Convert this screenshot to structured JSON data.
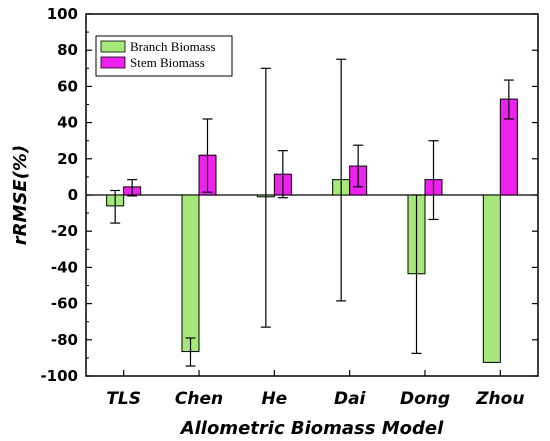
{
  "chart_data": {
    "type": "bar",
    "categories": [
      "TLS",
      "Chen",
      "He",
      "Dai",
      "Dong",
      "Zhou"
    ],
    "series": [
      {
        "name": "Branch Biomass",
        "color": "#a6e87a",
        "values": [
          -6,
          -86.5,
          -1,
          8.5,
          -43.5,
          -92.5
        ],
        "err_high": [
          2.5,
          -79,
          70,
          75,
          0,
          -92.5
        ],
        "err_low": [
          -15.5,
          -94.5,
          -73,
          -58.5,
          -87.5,
          -92.5
        ]
      },
      {
        "name": "Stem Biomass",
        "color": "#ee22ee",
        "values": [
          4.5,
          22,
          11.5,
          16,
          8.5,
          53
        ],
        "err_high": [
          8.5,
          42,
          24.5,
          27.5,
          30,
          63.5
        ],
        "err_low": [
          -0.5,
          1.5,
          -1.5,
          4.5,
          -13.5,
          42
        ]
      }
    ],
    "ylabel": "rRMSE(%)",
    "xlabel": "Allometric Biomass Model",
    "ylim": [
      -100,
      100
    ],
    "yticks": [
      100,
      80,
      60,
      40,
      20,
      0,
      -20,
      -40,
      -60,
      -80,
      -100
    ],
    "legend_position": "top-left",
    "grid": false
  }
}
